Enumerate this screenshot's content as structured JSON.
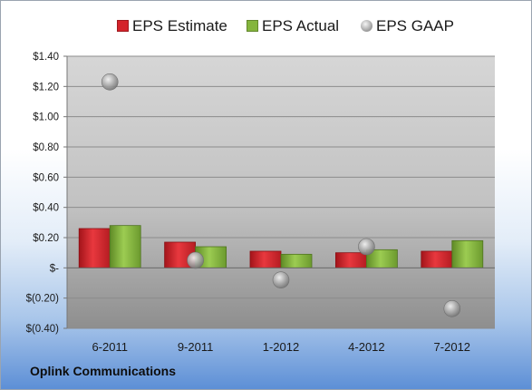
{
  "chart_data": {
    "type": "bar",
    "categories": [
      "6-2011",
      "9-2011",
      "1-2012",
      "4-2012",
      "7-2012"
    ],
    "series": [
      {
        "name": "EPS Estimate",
        "type": "bar",
        "color": "#d4232a",
        "values": [
          0.26,
          0.17,
          0.11,
          0.1,
          0.11
        ]
      },
      {
        "name": "EPS Actual",
        "type": "bar",
        "color": "#84b53c",
        "values": [
          0.28,
          0.14,
          0.09,
          0.12,
          0.18
        ]
      },
      {
        "name": "EPS GAAP",
        "type": "scatter",
        "color": "#9a9a9a",
        "values": [
          1.23,
          0.05,
          -0.08,
          0.14,
          -0.27
        ]
      }
    ],
    "yticks": [
      1.4,
      1.2,
      1.0,
      0.8,
      0.6,
      0.4,
      0.2,
      0,
      -0.2,
      -0.4
    ],
    "ytick_labels": [
      "$1.40",
      "$1.20",
      "$1.00",
      "$0.80",
      "$0.60",
      "$0.40",
      "$0.20",
      "$-",
      "$(0.20)",
      "$(0.40)"
    ],
    "ylim": [
      -0.4,
      1.4
    ],
    "grid": true,
    "legend_position": "top",
    "company": "Oplink Communications"
  }
}
